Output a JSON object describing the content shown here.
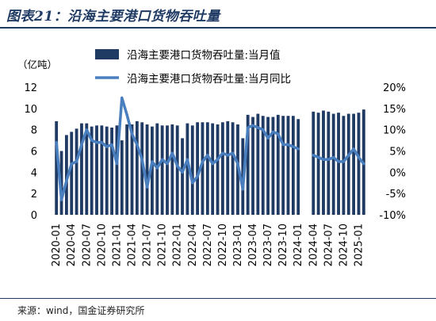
{
  "figure_title": "图表21：沿海主要港口货物吞吐量",
  "source": "来源：wind，国金证券研究所",
  "chart_data": {
    "type": "bar+line",
    "left_axis_unit": "（亿吨）",
    "left_ylim": [
      0,
      12
    ],
    "left_ticks": [
      "0",
      "2",
      "4",
      "6",
      "8",
      "10",
      "12"
    ],
    "right_ylim": [
      -10,
      20
    ],
    "right_ticks": [
      "-10%",
      "-5%",
      "0%",
      "5%",
      "10%",
      "15%",
      "20%"
    ],
    "x_tick_labels": [
      "2020-01",
      "2020-04",
      "2020-07",
      "2020-10",
      "2021-01",
      "2021-04",
      "2021-07",
      "2021-10",
      "2022-01",
      "2022-04",
      "2022-07",
      "2022-10",
      "2023-01",
      "2023-04",
      "2023-07",
      "2023-10",
      "2024-01",
      "2024-04",
      "2024-07",
      "2024-10",
      "2025-01"
    ],
    "colors": {
      "bar": "#1f3a63",
      "line": "#4a7fbf"
    },
    "categories": [
      "2020-01",
      "2020-02",
      "2020-03",
      "2020-04",
      "2020-05",
      "2020-06",
      "2020-07",
      "2020-08",
      "2020-09",
      "2020-10",
      "2020-11",
      "2020-12",
      "2021-01",
      "2021-02",
      "2021-03",
      "2021-04",
      "2021-05",
      "2021-06",
      "2021-07",
      "2021-08",
      "2021-09",
      "2021-10",
      "2021-11",
      "2021-12",
      "2022-01",
      "2022-02",
      "2022-03",
      "2022-04",
      "2022-05",
      "2022-06",
      "2022-07",
      "2022-08",
      "2022-09",
      "2022-10",
      "2022-11",
      "2022-12",
      "2023-01",
      "2023-02",
      "2023-03",
      "2023-04",
      "2023-05",
      "2023-06",
      "2023-07",
      "2023-08",
      "2023-09",
      "2023-10",
      "2023-11",
      "2023-12",
      "2024-01",
      "2024-02",
      "2024-03",
      "2024-04",
      "2024-05",
      "2024-06",
      "2024-07",
      "2024-08",
      "2024-09",
      "2024-10",
      "2024-11",
      "2024-12",
      "2025-01",
      "2025-02"
    ],
    "series": [
      {
        "name": "沿海主要港口货物吞吐量:当月值",
        "type": "bar",
        "axis": "left",
        "values": [
          8.8,
          6.0,
          7.5,
          7.8,
          8.1,
          8.6,
          8.6,
          8.3,
          8.4,
          8.4,
          8.3,
          8.2,
          8.4,
          7.0,
          8.5,
          8.5,
          8.8,
          8.7,
          8.5,
          8.3,
          8.6,
          8.4,
          8.4,
          8.5,
          8.4,
          7.2,
          8.6,
          8.4,
          8.7,
          8.7,
          8.7,
          8.6,
          8.5,
          8.7,
          8.8,
          8.7,
          8.5,
          7.2,
          9.4,
          9.2,
          9.5,
          9.3,
          9.2,
          9.2,
          9.4,
          9.3,
          9.3,
          9.3,
          9.0,
          null,
          null,
          9.7,
          9.6,
          9.8,
          9.7,
          9.5,
          9.6,
          9.3,
          9.5,
          9.5,
          9.6,
          9.9
        ]
      },
      {
        "name": "沿海主要港口货物吞吐量:当月同比",
        "type": "line",
        "axis": "right",
        "values": [
          7.0,
          -6.5,
          -2.0,
          2.0,
          2.5,
          6.5,
          10.0,
          7.5,
          7.0,
          7.0,
          6.0,
          6.5,
          2.0,
          17.5,
          13.5,
          9.0,
          6.5,
          3.0,
          -3.5,
          2.5,
          1.0,
          3.0,
          2.0,
          4.5,
          1.5,
          0.0,
          3.0,
          -2.5,
          -1.0,
          2.5,
          4.0,
          2.0,
          3.0,
          4.5,
          4.0,
          4.5,
          2.0,
          -4.0,
          10.5,
          11.0,
          10.5,
          10.0,
          8.0,
          9.5,
          9.0,
          6.5,
          6.5,
          6.0,
          5.5,
          null,
          null,
          4.0,
          3.5,
          3.0,
          3.0,
          3.5,
          2.5,
          2.5,
          4.0,
          5.5,
          3.5,
          2.0
        ]
      }
    ]
  }
}
